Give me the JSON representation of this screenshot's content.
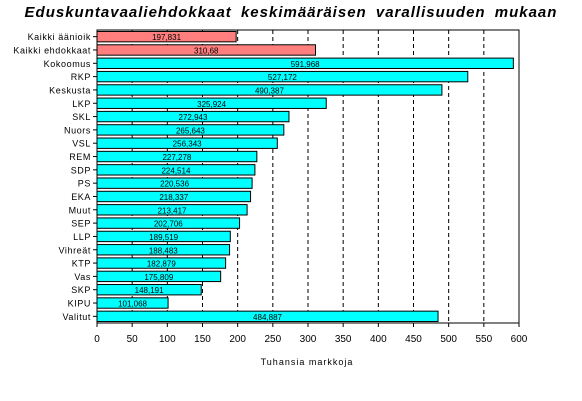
{
  "chart_data": {
    "type": "bar",
    "orientation": "horizontal",
    "title": "Eduskuntavaaliehdokkaat keskimääräisen varallisuuden mukaan",
    "xlabel": "Tuhansia markkoja",
    "ylabel": "",
    "xlim": [
      0,
      600
    ],
    "xticks": [
      0,
      50,
      100,
      150,
      200,
      250,
      300,
      350,
      400,
      450,
      500,
      550,
      600
    ],
    "grid": "vertical dashed",
    "legend": "none",
    "categories": [
      "Kaikki äänioik",
      "Kaikki ehdokkaat",
      "Kokoomus",
      "RKP",
      "Keskusta",
      "LKP",
      "SKL",
      "Nuors",
      "VSL",
      "REM",
      "SDP",
      "PS",
      "EKA",
      "Muut",
      "SEP",
      "LLP",
      "Vihreät",
      "KTP",
      "Vas",
      "SKP",
      "KIPU",
      "Valitut"
    ],
    "values": [
      197.831,
      310.68,
      591.968,
      527.172,
      490.387,
      325.924,
      272.943,
      265.643,
      256.343,
      227.278,
      224.514,
      220.536,
      218.337,
      213.417,
      202.706,
      189.519,
      188.483,
      182.879,
      175.809,
      148.191,
      101.068,
      484.887
    ],
    "labels": [
      "197,831",
      "310,68",
      "591,968",
      "527,172",
      "490,387",
      "325,924",
      "272,943",
      "265,643",
      "256,343",
      "227,278",
      "224,514",
      "220,536",
      "218,337",
      "213,417",
      "202,706",
      "189,519",
      "188,483",
      "182,879",
      "175,809",
      "148,191",
      "101,068",
      "484,887"
    ],
    "bar_colors": [
      "#FF7F7F",
      "#FF7F7F",
      "#00FFFF",
      "#00FFFF",
      "#00FFFF",
      "#00FFFF",
      "#00FFFF",
      "#00FFFF",
      "#00FFFF",
      "#00FFFF",
      "#00FFFF",
      "#00FFFF",
      "#00FFFF",
      "#00FFFF",
      "#00FFFF",
      "#00FFFF",
      "#00FFFF",
      "#00FFFF",
      "#00FFFF",
      "#00FFFF",
      "#00FFFF",
      "#00FFFF"
    ]
  }
}
